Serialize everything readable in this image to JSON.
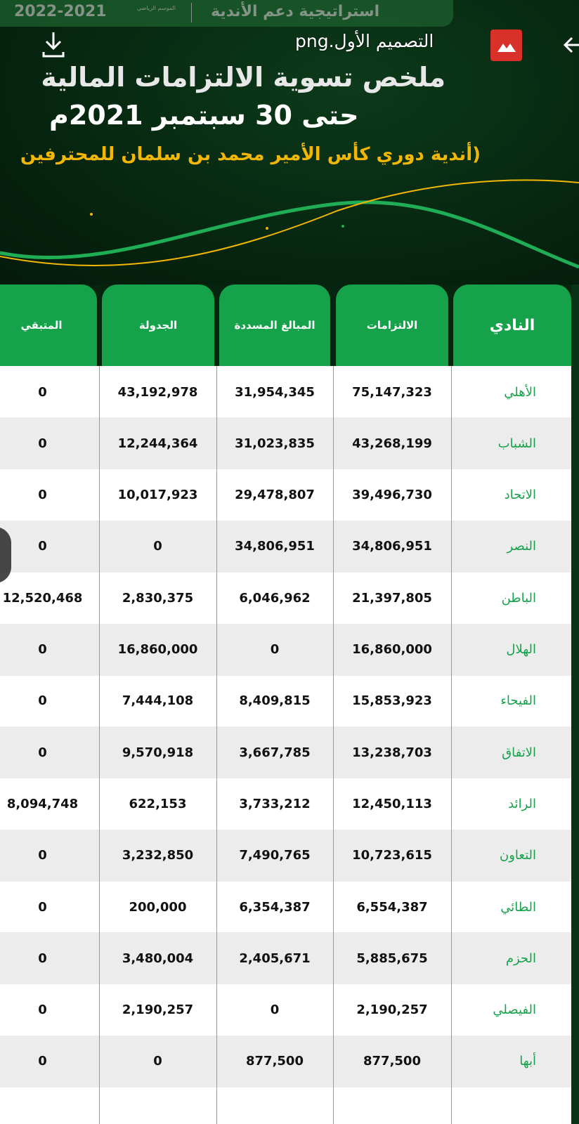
{
  "viewer": {
    "file_name": "التصميم الأول.png",
    "icons": {
      "back": "back-arrow-icon",
      "gallery": "gallery-icon",
      "download": "download-icon"
    }
  },
  "infographic": {
    "season_label": "الموسم الرياضي",
    "season": "2022-2021",
    "strategy": "استراتيجية دعم الأندية",
    "title_line1": "ملخص تسوية الالتزامات المالية",
    "title_line2": "حتى 30 سبتمبر 2021م",
    "subtitle": "(أندية دوري كأس الأمير محمد بن سلمان للمحترفين",
    "colors": {
      "green": "#16a24a",
      "gold": "#f2b705",
      "dark": "#06240f"
    }
  },
  "table": {
    "headers": [
      "النادي",
      "الالتزامات",
      "المبالغ المسددة",
      "الجدولة",
      "المتبقي"
    ],
    "rows": [
      [
        "الأهلي",
        "75,147,323",
        "31,954,345",
        "43,192,978",
        "0"
      ],
      [
        "الشباب",
        "43,268,199",
        "31,023,835",
        "12,244,364",
        "0"
      ],
      [
        "الاتحاد",
        "39,496,730",
        "29,478,807",
        "10,017,923",
        "0"
      ],
      [
        "النصر",
        "34,806,951",
        "34,806,951",
        "0",
        "0"
      ],
      [
        "الباطن",
        "21,397,805",
        "6,046,962",
        "2,830,375",
        "12,520,468"
      ],
      [
        "الهلال",
        "16,860,000",
        "0",
        "16,860,000",
        "0"
      ],
      [
        "الفيحاء",
        "15,853,923",
        "8,409,815",
        "7,444,108",
        "0"
      ],
      [
        "الاتفاق",
        "13,238,703",
        "3,667,785",
        "9,570,918",
        "0"
      ],
      [
        "الرائد",
        "12,450,113",
        "3,733,212",
        "622,153",
        "8,094,748"
      ],
      [
        "التعاون",
        "10,723,615",
        "7,490,765",
        "3,232,850",
        "0"
      ],
      [
        "الطائي",
        "6,554,387",
        "6,354,387",
        "200,000",
        "0"
      ],
      [
        "الحزم",
        "5,885,675",
        "2,405,671",
        "3,480,004",
        "0"
      ],
      [
        "الفيصلي",
        "2,190,257",
        "0",
        "2,190,257",
        "0"
      ],
      [
        "أبها",
        "877,500",
        "877,500",
        "0",
        "0"
      ]
    ]
  }
}
